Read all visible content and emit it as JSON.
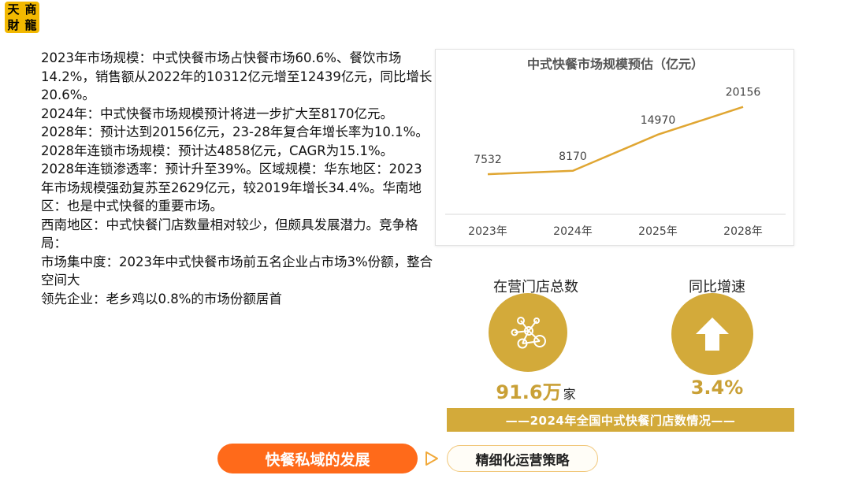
{
  "logo": {
    "chars": [
      "天",
      "商",
      "財",
      "龍"
    ]
  },
  "body_paragraphs": [
    "2023年市场规模：中式快餐市场占快餐市场60.6%、餐饮市场14.2%，销售额从2022年的10312亿元增至12439亿元，同比增长20.6%。",
    "2024年：中式快餐市场规模预计将进一步扩大至8170亿元。",
    "2028年：预计达到20156亿元，23-28年复合年增长率为10.1%。2028年连锁市场规模：预计达4858亿元，CAGR为15.1%。",
    "2028年连锁渗透率：预计升至39%。区域规模：华东地区：2023年市场规模强劲复苏至2629亿元，较2019年增长34.4%。华南地区：也是中式快餐的重要市场。",
    "西南地区：中式快餐门店数量相对较少，但颇具发展潜力。竞争格局：",
    "市场集中度：2023年中式快餐市场前五名企业占市场3%份额，整合空间大",
    "领先企业：老乡鸡以0.8%的市场份额居首"
  ],
  "chart_data": {
    "type": "line",
    "title": "中式快餐市场规模预估（亿元）",
    "categories": [
      "2023年",
      "2024年",
      "2025年",
      "2028年"
    ],
    "series": [
      {
        "values": [
          7532,
          8170,
          14970,
          20156
        ]
      }
    ],
    "data_labels": [
      "7532",
      "8170",
      "14970",
      "20156"
    ],
    "ylim": [
      0,
      25000
    ],
    "grid": false,
    "line_color": "#e0a632",
    "axis_color": "#d9d9d9",
    "label_color": "#444444"
  },
  "stats": {
    "stores_label": "在营门店总数",
    "stores_value": "91.6万",
    "stores_unit": "家",
    "growth_label": "同比增速",
    "growth_value": "3.4%",
    "stores_icon": "network-nodes-icon",
    "growth_icon": "up-arrow-icon"
  },
  "banner": {
    "text": "——2024年全国中式快餐门店数情况——"
  },
  "footer": {
    "primary_label": "快餐私域的发展",
    "secondary_label": "精细化运营策略",
    "arrow_icon": "play-arrow-icon"
  },
  "colors": {
    "gold": "#d3aa3a",
    "orange": "#ff6a1a",
    "logo_bg": "#f2b800"
  }
}
